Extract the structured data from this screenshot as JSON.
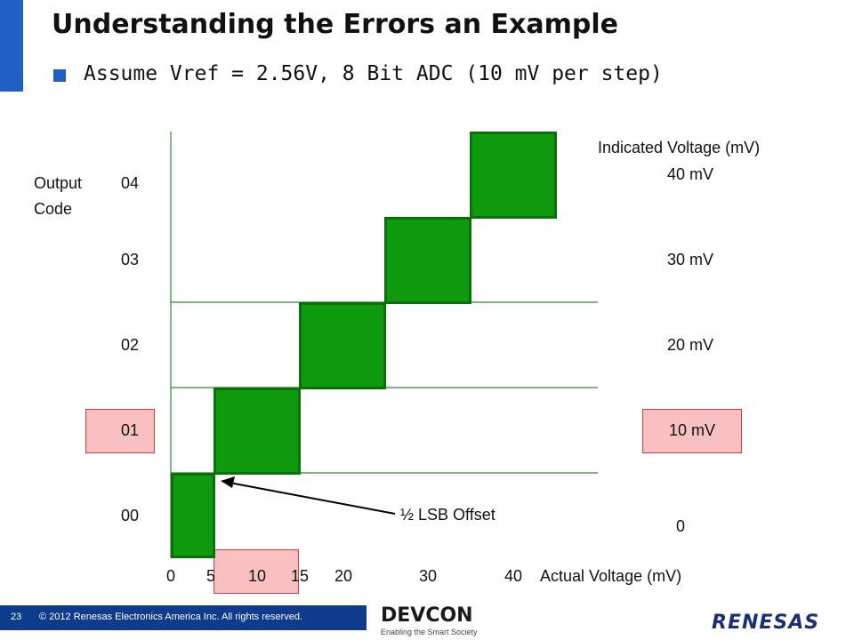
{
  "slide": {
    "title": "Understanding the Errors an Example",
    "bullet": "Assume Vref = 2.56V, 8 Bit ADC (10 mV per step)",
    "output_label_line1": "Output",
    "output_label_line2": "Code",
    "output_codes": [
      "04",
      "03",
      "02",
      "01",
      "00"
    ],
    "indicated_header": "Indicated Voltage (mV)",
    "indicated_values": [
      "40 mV",
      "30 mV",
      "20 mV",
      "10 mV",
      "0"
    ],
    "x_ticks": [
      "0",
      "5",
      "10",
      "15",
      "20",
      "30",
      "40"
    ],
    "x_label": "Actual Voltage (mV)",
    "annotation": "½ LSB Offset",
    "colors": {
      "step_fill": "#0d9a0d",
      "highlight": "#f8c0c0",
      "accent": "#1f5fc4"
    }
  },
  "footer": {
    "page_number": "23",
    "copyright": "© 2012 Renesas Electronics America Inc. All rights reserved.",
    "devcon_logo": "DEVCON",
    "devcon_tagline": "Enabling the Smart Society",
    "renesas_logo": "RENESAS"
  }
}
